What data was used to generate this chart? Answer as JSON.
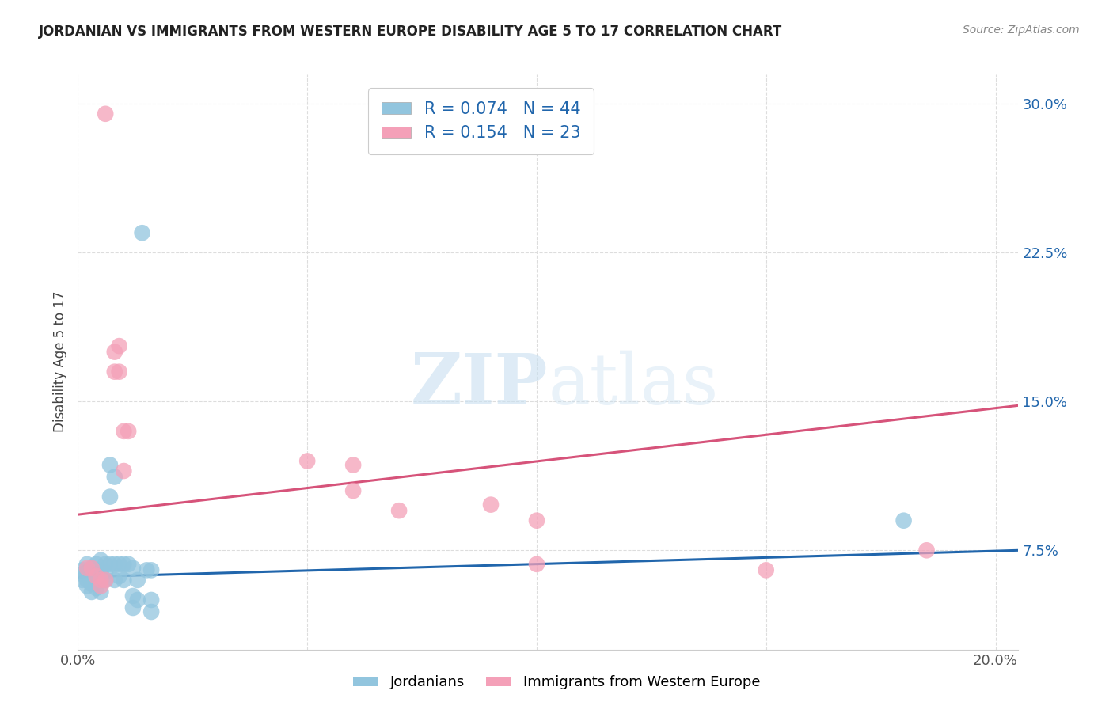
{
  "title": "JORDANIAN VS IMMIGRANTS FROM WESTERN EUROPE DISABILITY AGE 5 TO 17 CORRELATION CHART",
  "source": "Source: ZipAtlas.com",
  "ylabel": "Disability Age 5 to 17",
  "xlim": [
    0.0,
    0.205
  ],
  "ylim": [
    0.025,
    0.315
  ],
  "yticks": [
    0.075,
    0.15,
    0.225,
    0.3
  ],
  "ytick_labels": [
    "7.5%",
    "15.0%",
    "22.5%",
    "30.0%"
  ],
  "xticks": [
    0.0,
    0.05,
    0.1,
    0.15,
    0.2
  ],
  "xtick_labels": [
    "0.0%",
    "",
    "",
    "",
    "20.0%"
  ],
  "legend_labels": [
    "Jordanians",
    "Immigrants from Western Europe"
  ],
  "blue_R": "0.074",
  "blue_N": "44",
  "pink_R": "0.154",
  "pink_N": "23",
  "blue_color": "#92c5de",
  "pink_color": "#f4a0b8",
  "blue_line_color": "#2166ac",
  "pink_line_color": "#d6537a",
  "watermark_color": "#c8dff0",
  "background_color": "#ffffff",
  "grid_color": "#dddddd",
  "blue_points": [
    [
      0.001,
      0.065
    ],
    [
      0.001,
      0.063
    ],
    [
      0.001,
      0.06
    ],
    [
      0.002,
      0.068
    ],
    [
      0.002,
      0.064
    ],
    [
      0.002,
      0.06
    ],
    [
      0.002,
      0.057
    ],
    [
      0.003,
      0.066
    ],
    [
      0.003,
      0.063
    ],
    [
      0.003,
      0.058
    ],
    [
      0.003,
      0.054
    ],
    [
      0.004,
      0.068
    ],
    [
      0.004,
      0.064
    ],
    [
      0.004,
      0.06
    ],
    [
      0.004,
      0.056
    ],
    [
      0.005,
      0.07
    ],
    [
      0.005,
      0.064
    ],
    [
      0.005,
      0.06
    ],
    [
      0.005,
      0.054
    ],
    [
      0.006,
      0.068
    ],
    [
      0.006,
      0.064
    ],
    [
      0.006,
      0.06
    ],
    [
      0.007,
      0.118
    ],
    [
      0.007,
      0.102
    ],
    [
      0.007,
      0.068
    ],
    [
      0.008,
      0.112
    ],
    [
      0.008,
      0.068
    ],
    [
      0.008,
      0.06
    ],
    [
      0.009,
      0.068
    ],
    [
      0.009,
      0.062
    ],
    [
      0.01,
      0.068
    ],
    [
      0.01,
      0.06
    ],
    [
      0.011,
      0.068
    ],
    [
      0.012,
      0.066
    ],
    [
      0.012,
      0.052
    ],
    [
      0.012,
      0.046
    ],
    [
      0.013,
      0.06
    ],
    [
      0.013,
      0.05
    ],
    [
      0.014,
      0.235
    ],
    [
      0.015,
      0.065
    ],
    [
      0.016,
      0.065
    ],
    [
      0.016,
      0.05
    ],
    [
      0.016,
      0.044
    ],
    [
      0.18,
      0.09
    ]
  ],
  "pink_points": [
    [
      0.002,
      0.066
    ],
    [
      0.003,
      0.066
    ],
    [
      0.004,
      0.062
    ],
    [
      0.005,
      0.06
    ],
    [
      0.005,
      0.057
    ],
    [
      0.006,
      0.06
    ],
    [
      0.006,
      0.295
    ],
    [
      0.008,
      0.175
    ],
    [
      0.008,
      0.165
    ],
    [
      0.009,
      0.178
    ],
    [
      0.009,
      0.165
    ],
    [
      0.01,
      0.135
    ],
    [
      0.01,
      0.115
    ],
    [
      0.011,
      0.135
    ],
    [
      0.05,
      0.12
    ],
    [
      0.06,
      0.118
    ],
    [
      0.06,
      0.105
    ],
    [
      0.07,
      0.095
    ],
    [
      0.09,
      0.098
    ],
    [
      0.1,
      0.09
    ],
    [
      0.1,
      0.068
    ],
    [
      0.15,
      0.065
    ],
    [
      0.185,
      0.075
    ]
  ],
  "blue_trendline": [
    [
      0.0,
      0.0615
    ],
    [
      0.205,
      0.075
    ]
  ],
  "pink_trendline": [
    [
      0.0,
      0.093
    ],
    [
      0.205,
      0.148
    ]
  ]
}
